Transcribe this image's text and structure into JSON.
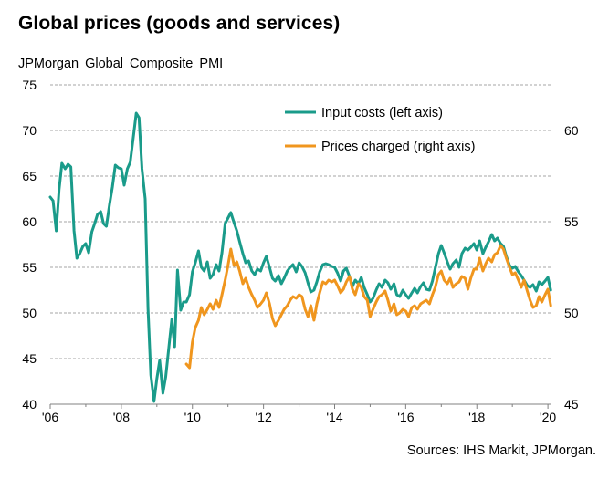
{
  "title": "Global prices (goods and services)",
  "subtitle": "JPMorgan Global  Composite  PMI",
  "source": "Sources: IHS Markit, JPMorgan.",
  "colors": {
    "input": "#1a9b8a",
    "prices": "#f0961e",
    "grid": "#a6a6a6",
    "axis": "#808080"
  },
  "chart_data": {
    "type": "line",
    "title": "Global prices (goods and services)",
    "xlabel": "",
    "ylabel": "JPMorgan Global  Composite  PMI",
    "x_ticks": [
      "'06",
      "'08",
      "'10",
      "'12",
      "'14",
      "'16",
      "'18",
      "'20"
    ],
    "x_range": [
      2006.0,
      2020.1
    ],
    "y_left": {
      "range": [
        40,
        75
      ],
      "ticks": [
        40,
        45,
        50,
        55,
        60,
        65,
        70,
        75
      ]
    },
    "y_right": {
      "range": [
        45,
        62.5
      ],
      "ticks": [
        45,
        50,
        55,
        60
      ]
    },
    "grid": "horizontal dashed",
    "legend": "top-right",
    "series": [
      {
        "name": "Input costs (left axis)",
        "axis": "left",
        "points": [
          [
            2006.0,
            62.7
          ],
          [
            2006.08,
            62.3
          ],
          [
            2006.17,
            59.0
          ],
          [
            2006.25,
            63.5
          ],
          [
            2006.33,
            66.4
          ],
          [
            2006.42,
            65.8
          ],
          [
            2006.5,
            66.3
          ],
          [
            2006.58,
            66.0
          ],
          [
            2006.67,
            59.0
          ],
          [
            2006.75,
            56.0
          ],
          [
            2006.83,
            56.5
          ],
          [
            2006.92,
            57.3
          ],
          [
            2007.0,
            57.6
          ],
          [
            2007.08,
            56.6
          ],
          [
            2007.17,
            58.9
          ],
          [
            2007.25,
            59.8
          ],
          [
            2007.33,
            60.8
          ],
          [
            2007.42,
            61.1
          ],
          [
            2007.5,
            59.8
          ],
          [
            2007.58,
            59.5
          ],
          [
            2007.67,
            61.9
          ],
          [
            2007.75,
            63.8
          ],
          [
            2007.83,
            66.2
          ],
          [
            2007.92,
            65.9
          ],
          [
            2008.0,
            65.8
          ],
          [
            2008.08,
            64.0
          ],
          [
            2008.17,
            65.8
          ],
          [
            2008.25,
            66.5
          ],
          [
            2008.33,
            69.0
          ],
          [
            2008.42,
            71.9
          ],
          [
            2008.5,
            71.4
          ],
          [
            2008.58,
            65.8
          ],
          [
            2008.67,
            62.5
          ],
          [
            2008.75,
            50.5
          ],
          [
            2008.83,
            43.2
          ],
          [
            2008.92,
            40.3
          ],
          [
            2009.0,
            42.8
          ],
          [
            2009.08,
            44.8
          ],
          [
            2009.17,
            41.2
          ],
          [
            2009.25,
            43.0
          ],
          [
            2009.33,
            46.0
          ],
          [
            2009.42,
            49.3
          ],
          [
            2009.5,
            46.3
          ],
          [
            2009.58,
            54.7
          ],
          [
            2009.67,
            50.3
          ],
          [
            2009.75,
            51.2
          ],
          [
            2009.83,
            51.2
          ],
          [
            2009.92,
            52.0
          ],
          [
            2010.0,
            54.5
          ],
          [
            2010.08,
            55.5
          ],
          [
            2010.17,
            56.8
          ],
          [
            2010.25,
            55.0
          ],
          [
            2010.33,
            54.6
          ],
          [
            2010.42,
            55.6
          ],
          [
            2010.5,
            53.8
          ],
          [
            2010.58,
            54.2
          ],
          [
            2010.67,
            55.3
          ],
          [
            2010.75,
            54.6
          ],
          [
            2010.83,
            56.6
          ],
          [
            2010.92,
            59.8
          ],
          [
            2011.0,
            60.4
          ],
          [
            2011.08,
            61.0
          ],
          [
            2011.17,
            59.9
          ],
          [
            2011.25,
            59.0
          ],
          [
            2011.33,
            57.8
          ],
          [
            2011.42,
            56.5
          ],
          [
            2011.5,
            55.5
          ],
          [
            2011.58,
            55.7
          ],
          [
            2011.67,
            54.6
          ],
          [
            2011.75,
            54.2
          ],
          [
            2011.83,
            54.8
          ],
          [
            2011.92,
            54.6
          ],
          [
            2012.0,
            55.5
          ],
          [
            2012.08,
            56.2
          ],
          [
            2012.17,
            55.0
          ],
          [
            2012.25,
            53.8
          ],
          [
            2012.33,
            53.5
          ],
          [
            2012.42,
            54.1
          ],
          [
            2012.5,
            53.2
          ],
          [
            2012.58,
            53.8
          ],
          [
            2012.67,
            54.6
          ],
          [
            2012.75,
            55.0
          ],
          [
            2012.83,
            55.3
          ],
          [
            2012.92,
            54.5
          ],
          [
            2013.0,
            55.5
          ],
          [
            2013.08,
            55.1
          ],
          [
            2013.17,
            54.4
          ],
          [
            2013.25,
            53.3
          ],
          [
            2013.33,
            52.3
          ],
          [
            2013.42,
            52.5
          ],
          [
            2013.5,
            53.4
          ],
          [
            2013.58,
            54.5
          ],
          [
            2013.67,
            55.3
          ],
          [
            2013.75,
            55.4
          ],
          [
            2013.83,
            55.3
          ],
          [
            2013.92,
            55.1
          ],
          [
            2014.0,
            55.0
          ],
          [
            2014.08,
            54.4
          ],
          [
            2014.17,
            53.5
          ],
          [
            2014.25,
            54.6
          ],
          [
            2014.33,
            54.9
          ],
          [
            2014.42,
            54.0
          ],
          [
            2014.5,
            52.9
          ],
          [
            2014.58,
            53.6
          ],
          [
            2014.67,
            53.2
          ],
          [
            2014.75,
            53.9
          ],
          [
            2014.83,
            52.8
          ],
          [
            2014.92,
            52.0
          ],
          [
            2015.0,
            51.2
          ],
          [
            2015.08,
            51.6
          ],
          [
            2015.17,
            52.5
          ],
          [
            2015.25,
            53.2
          ],
          [
            2015.33,
            52.8
          ],
          [
            2015.42,
            53.6
          ],
          [
            2015.5,
            53.3
          ],
          [
            2015.58,
            52.6
          ],
          [
            2015.67,
            53.2
          ],
          [
            2015.75,
            52.0
          ],
          [
            2015.83,
            51.8
          ],
          [
            2015.92,
            52.5
          ],
          [
            2016.0,
            52.0
          ],
          [
            2016.08,
            51.6
          ],
          [
            2016.17,
            52.2
          ],
          [
            2016.25,
            52.7
          ],
          [
            2016.33,
            52.2
          ],
          [
            2016.42,
            52.9
          ],
          [
            2016.5,
            53.3
          ],
          [
            2016.58,
            52.6
          ],
          [
            2016.67,
            52.5
          ],
          [
            2016.75,
            53.5
          ],
          [
            2016.83,
            54.9
          ],
          [
            2016.92,
            56.5
          ],
          [
            2017.0,
            57.4
          ],
          [
            2017.08,
            56.6
          ],
          [
            2017.17,
            55.6
          ],
          [
            2017.25,
            54.8
          ],
          [
            2017.33,
            55.4
          ],
          [
            2017.42,
            55.8
          ],
          [
            2017.5,
            55.0
          ],
          [
            2017.58,
            56.5
          ],
          [
            2017.67,
            57.1
          ],
          [
            2017.75,
            56.9
          ],
          [
            2017.83,
            57.2
          ],
          [
            2017.92,
            57.6
          ],
          [
            2018.0,
            56.9
          ],
          [
            2018.08,
            57.9
          ],
          [
            2018.17,
            56.5
          ],
          [
            2018.25,
            57.2
          ],
          [
            2018.33,
            57.8
          ],
          [
            2018.42,
            58.6
          ],
          [
            2018.5,
            57.9
          ],
          [
            2018.58,
            58.2
          ],
          [
            2018.67,
            57.6
          ],
          [
            2018.75,
            57.3
          ],
          [
            2018.83,
            56.2
          ],
          [
            2018.92,
            55.2
          ],
          [
            2019.0,
            54.9
          ],
          [
            2019.08,
            55.1
          ],
          [
            2019.17,
            54.5
          ],
          [
            2019.25,
            54.1
          ],
          [
            2019.33,
            53.6
          ],
          [
            2019.42,
            53.0
          ],
          [
            2019.5,
            52.8
          ],
          [
            2019.58,
            53.1
          ],
          [
            2019.67,
            52.4
          ],
          [
            2019.75,
            53.4
          ],
          [
            2019.83,
            53.1
          ],
          [
            2019.92,
            53.5
          ],
          [
            2020.0,
            53.9
          ],
          [
            2020.08,
            52.5
          ]
        ]
      },
      {
        "name": "Prices charged (right axis)",
        "axis": "right",
        "points": [
          [
            2009.83,
            47.2
          ],
          [
            2009.92,
            47.0
          ],
          [
            2010.0,
            48.4
          ],
          [
            2010.08,
            49.2
          ],
          [
            2010.17,
            49.6
          ],
          [
            2010.25,
            50.3
          ],
          [
            2010.33,
            49.9
          ],
          [
            2010.42,
            50.2
          ],
          [
            2010.5,
            50.5
          ],
          [
            2010.58,
            50.2
          ],
          [
            2010.67,
            50.7
          ],
          [
            2010.75,
            50.3
          ],
          [
            2010.83,
            51.0
          ],
          [
            2010.92,
            51.8
          ],
          [
            2011.0,
            52.6
          ],
          [
            2011.08,
            53.5
          ],
          [
            2011.17,
            52.6
          ],
          [
            2011.25,
            52.8
          ],
          [
            2011.33,
            52.3
          ],
          [
            2011.42,
            51.6
          ],
          [
            2011.5,
            51.9
          ],
          [
            2011.58,
            51.4
          ],
          [
            2011.67,
            51.0
          ],
          [
            2011.75,
            50.7
          ],
          [
            2011.83,
            50.3
          ],
          [
            2011.92,
            50.5
          ],
          [
            2012.0,
            50.7
          ],
          [
            2012.08,
            51.1
          ],
          [
            2012.17,
            50.5
          ],
          [
            2012.25,
            49.7
          ],
          [
            2012.33,
            49.3
          ],
          [
            2012.42,
            49.6
          ],
          [
            2012.5,
            49.9
          ],
          [
            2012.58,
            50.2
          ],
          [
            2012.67,
            50.4
          ],
          [
            2012.75,
            50.7
          ],
          [
            2012.83,
            50.9
          ],
          [
            2012.92,
            50.8
          ],
          [
            2013.0,
            51.0
          ],
          [
            2013.08,
            50.9
          ],
          [
            2013.17,
            50.2
          ],
          [
            2013.25,
            49.8
          ],
          [
            2013.33,
            50.4
          ],
          [
            2013.42,
            49.6
          ],
          [
            2013.5,
            50.5
          ],
          [
            2013.58,
            51.1
          ],
          [
            2013.67,
            51.7
          ],
          [
            2013.75,
            51.6
          ],
          [
            2013.83,
            51.8
          ],
          [
            2013.92,
            51.7
          ],
          [
            2014.0,
            51.8
          ],
          [
            2014.08,
            51.5
          ],
          [
            2014.17,
            51.1
          ],
          [
            2014.25,
            51.3
          ],
          [
            2014.33,
            51.7
          ],
          [
            2014.42,
            52.0
          ],
          [
            2014.5,
            51.3
          ],
          [
            2014.58,
            51.0
          ],
          [
            2014.67,
            51.6
          ],
          [
            2014.75,
            51.4
          ],
          [
            2014.83,
            50.9
          ],
          [
            2014.92,
            50.7
          ],
          [
            2015.0,
            49.8
          ],
          [
            2015.08,
            50.2
          ],
          [
            2015.17,
            50.6
          ],
          [
            2015.25,
            50.9
          ],
          [
            2015.33,
            51.0
          ],
          [
            2015.42,
            51.2
          ],
          [
            2015.5,
            50.7
          ],
          [
            2015.58,
            50.1
          ],
          [
            2015.67,
            50.5
          ],
          [
            2015.75,
            49.9
          ],
          [
            2015.83,
            50.0
          ],
          [
            2015.92,
            50.2
          ],
          [
            2016.0,
            50.1
          ],
          [
            2016.08,
            49.8
          ],
          [
            2016.17,
            50.3
          ],
          [
            2016.25,
            50.4
          ],
          [
            2016.33,
            50.2
          ],
          [
            2016.42,
            50.5
          ],
          [
            2016.5,
            50.6
          ],
          [
            2016.58,
            50.7
          ],
          [
            2016.67,
            50.5
          ],
          [
            2016.75,
            51.0
          ],
          [
            2016.83,
            51.4
          ],
          [
            2016.92,
            52.1
          ],
          [
            2017.0,
            52.3
          ],
          [
            2017.08,
            51.8
          ],
          [
            2017.17,
            51.6
          ],
          [
            2017.25,
            51.9
          ],
          [
            2017.33,
            51.4
          ],
          [
            2017.42,
            51.6
          ],
          [
            2017.5,
            51.7
          ],
          [
            2017.58,
            52.0
          ],
          [
            2017.67,
            51.9
          ],
          [
            2017.75,
            51.3
          ],
          [
            2017.83,
            51.9
          ],
          [
            2017.92,
            52.4
          ],
          [
            2018.0,
            52.4
          ],
          [
            2018.08,
            53.0
          ],
          [
            2018.17,
            52.3
          ],
          [
            2018.25,
            52.7
          ],
          [
            2018.33,
            53.0
          ],
          [
            2018.42,
            52.8
          ],
          [
            2018.5,
            53.2
          ],
          [
            2018.58,
            53.3
          ],
          [
            2018.67,
            53.7
          ],
          [
            2018.75,
            53.5
          ],
          [
            2018.83,
            53.0
          ],
          [
            2018.92,
            52.5
          ],
          [
            2019.0,
            52.1
          ],
          [
            2019.08,
            52.2
          ],
          [
            2019.17,
            51.8
          ],
          [
            2019.25,
            51.4
          ],
          [
            2019.33,
            51.8
          ],
          [
            2019.42,
            51.2
          ],
          [
            2019.5,
            50.7
          ],
          [
            2019.58,
            50.3
          ],
          [
            2019.67,
            50.4
          ],
          [
            2019.75,
            50.9
          ],
          [
            2019.83,
            50.6
          ],
          [
            2019.92,
            51.0
          ],
          [
            2020.0,
            51.3
          ],
          [
            2020.08,
            50.4
          ]
        ]
      }
    ]
  }
}
